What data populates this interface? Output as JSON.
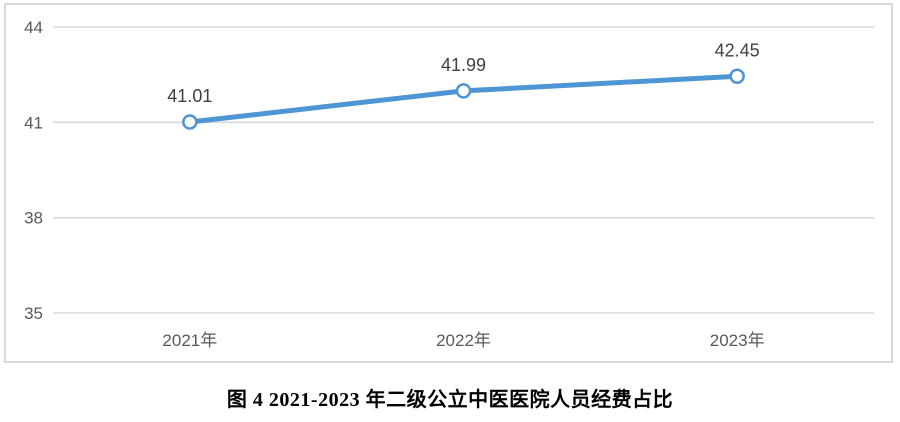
{
  "caption": "图 4 2021-2023 年二级公立中医医院人员经费占比",
  "chart_data": {
    "type": "line",
    "categories": [
      "2021年",
      "2022年",
      "2023年"
    ],
    "values": [
      41.01,
      41.99,
      42.45
    ],
    "data_labels": [
      "41.01",
      "41.99",
      "42.45"
    ],
    "yticks": [
      35,
      38,
      41,
      44
    ],
    "ylim": [
      35,
      44
    ],
    "grid": true,
    "legend": false,
    "marker": "open-circle",
    "colors": {
      "line": "#4e95d4",
      "marker_fill": "#ffffff",
      "gridline": "#d9d9d9",
      "axis_text": "#595959",
      "data_label_text": "#404040",
      "frame": "#d9d9d9"
    }
  }
}
